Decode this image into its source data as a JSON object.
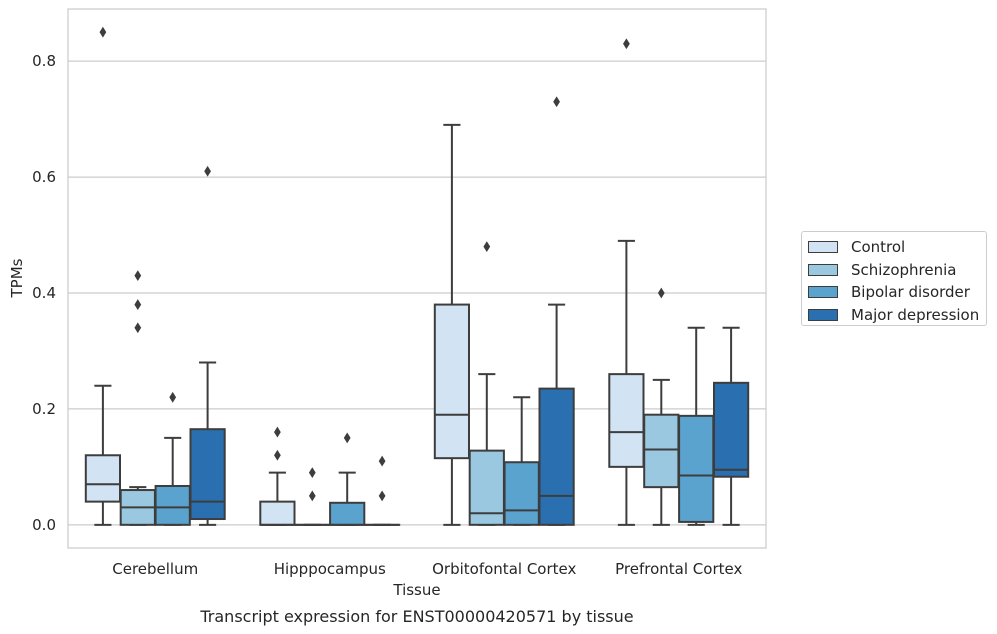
{
  "chart_data": {
    "type": "box",
    "title": "",
    "caption": "Transcript expression for ENST00000420571 by tissue",
    "xlabel": "Tissue",
    "ylabel": "TPMs",
    "ylim": [
      -0.04,
      0.89
    ],
    "yticks": [
      0.0,
      0.2,
      0.4,
      0.6,
      0.8
    ],
    "ytick_labels": [
      "0.0",
      "0.2",
      "0.4",
      "0.6",
      "0.8"
    ],
    "grid": "horizontal",
    "legend_position": "right",
    "categories": [
      "Cerebellum",
      "Hipppocampus",
      "Orbitofontal Cortex",
      "Prefrontal Cortex"
    ],
    "series": [
      {
        "name": "Control",
        "color": "#d2e3f3",
        "boxes": [
          {
            "q1": 0.04,
            "median": 0.07,
            "q3": 0.12,
            "whisker_low": 0.0,
            "whisker_high": 0.24,
            "outliers": [
              0.85
            ]
          },
          {
            "q1": 0.0,
            "median": 0.0,
            "q3": 0.04,
            "whisker_low": 0.0,
            "whisker_high": 0.09,
            "outliers": [
              0.12,
              0.16
            ]
          },
          {
            "q1": 0.115,
            "median": 0.19,
            "q3": 0.38,
            "whisker_low": 0.0,
            "whisker_high": 0.69,
            "outliers": []
          },
          {
            "q1": 0.1,
            "median": 0.16,
            "q3": 0.26,
            "whisker_low": 0.0,
            "whisker_high": 0.49,
            "outliers": [
              0.83
            ]
          }
        ]
      },
      {
        "name": "Schizophrenia",
        "color": "#9ac8e0",
        "boxes": [
          {
            "q1": 0.0,
            "median": 0.03,
            "q3": 0.06,
            "whisker_low": 0.0,
            "whisker_high": 0.065,
            "outliers": [
              0.34,
              0.38,
              0.43
            ]
          },
          {
            "q1": 0.0,
            "median": 0.0,
            "q3": 0.0,
            "whisker_low": 0.0,
            "whisker_high": 0.0,
            "outliers": [
              0.05,
              0.09
            ]
          },
          {
            "q1": 0.0,
            "median": 0.02,
            "q3": 0.128,
            "whisker_low": 0.0,
            "whisker_high": 0.26,
            "outliers": [
              0.48
            ]
          },
          {
            "q1": 0.065,
            "median": 0.13,
            "q3": 0.19,
            "whisker_low": 0.0,
            "whisker_high": 0.25,
            "outliers": [
              0.4
            ]
          }
        ]
      },
      {
        "name": "Bipolar disorder",
        "color": "#5ba3cf",
        "boxes": [
          {
            "q1": 0.0,
            "median": 0.03,
            "q3": 0.067,
            "whisker_low": 0.0,
            "whisker_high": 0.15,
            "outliers": [
              0.22
            ]
          },
          {
            "q1": 0.0,
            "median": 0.0,
            "q3": 0.038,
            "whisker_low": 0.0,
            "whisker_high": 0.09,
            "outliers": [
              0.15
            ]
          },
          {
            "q1": 0.0,
            "median": 0.025,
            "q3": 0.108,
            "whisker_low": 0.0,
            "whisker_high": 0.22,
            "outliers": []
          },
          {
            "q1": 0.005,
            "median": 0.085,
            "q3": 0.188,
            "whisker_low": 0.0,
            "whisker_high": 0.34,
            "outliers": []
          }
        ]
      },
      {
        "name": "Major depression",
        "color": "#2a70b0",
        "boxes": [
          {
            "q1": 0.01,
            "median": 0.04,
            "q3": 0.165,
            "whisker_low": 0.0,
            "whisker_high": 0.28,
            "outliers": [
              0.61
            ]
          },
          {
            "q1": 0.0,
            "median": 0.0,
            "q3": 0.0,
            "whisker_low": 0.0,
            "whisker_high": 0.0,
            "outliers": [
              0.05,
              0.11
            ]
          },
          {
            "q1": 0.0,
            "median": 0.05,
            "q3": 0.235,
            "whisker_low": 0.0,
            "whisker_high": 0.38,
            "outliers": [
              0.73
            ]
          },
          {
            "q1": 0.083,
            "median": 0.095,
            "q3": 0.245,
            "whisker_low": 0.0,
            "whisker_high": 0.34,
            "outliers": []
          }
        ]
      }
    ]
  }
}
